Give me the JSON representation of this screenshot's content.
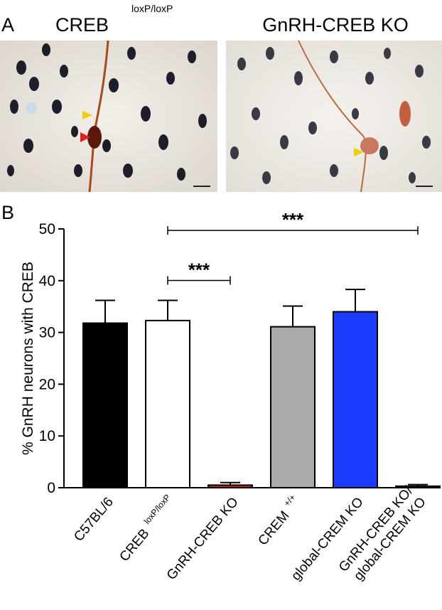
{
  "panel_a": {
    "label": "A",
    "left_title": "CREB",
    "left_title_superscript": "loxP/loxP",
    "right_title": "GnRH-CREB KO"
  },
  "chart_data": {
    "type": "bar",
    "panel_label": "B",
    "y_label": "% GnRH neurons with CREB",
    "categories": [
      "C57BL/6",
      "CREB",
      "GnRH-CREB KO",
      "CREM",
      "global-CREM KO",
      [
        "GnRH-CREB KO/",
        "global-CREM KO"
      ]
    ],
    "category_superscripts": [
      null,
      "loxP/loxP",
      null,
      "+/+",
      null,
      null
    ],
    "values": [
      31.8,
      32.3,
      0.5,
      31.1,
      34.0,
      0.3
    ],
    "errors": [
      4.4,
      3.9,
      0.5,
      4.0,
      4.3,
      0.3
    ],
    "colors": [
      "#000000",
      "#ffffff",
      "#cc2200",
      "#aaaaaa",
      "#1a3cff",
      "#2e5e1e"
    ],
    "ylim": [
      0,
      50
    ],
    "yticks": [
      0,
      10,
      20,
      30,
      40,
      50
    ],
    "significance": [
      {
        "from": 1,
        "to": 2,
        "label": "***"
      },
      {
        "from": 1,
        "to": 5,
        "label": "***"
      }
    ]
  }
}
